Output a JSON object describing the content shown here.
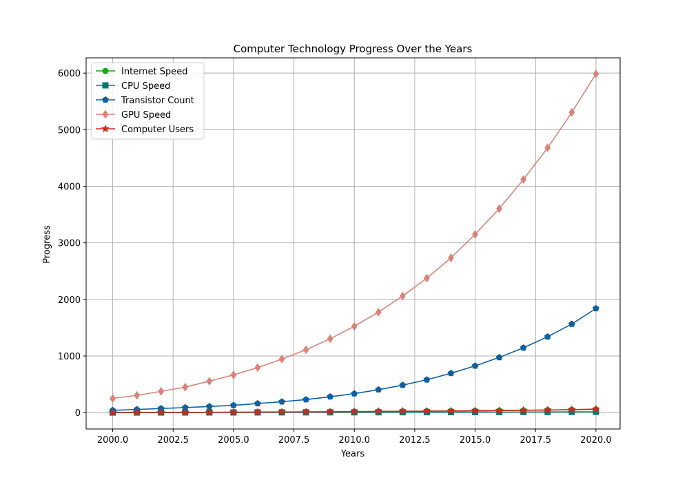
{
  "chart_data": {
    "type": "line",
    "title": "Computer Technology Progress Over the Years",
    "xlabel": "Years",
    "ylabel": "Progress",
    "xlim": [
      1998.9,
      2021.0
    ],
    "ylim": [
      -290,
      6270
    ],
    "x_ticks": [
      2000,
      2002.5,
      2005,
      2007.5,
      2010,
      2012.5,
      2015,
      2017.5,
      2020
    ],
    "x_tick_labels": [
      "2000.0",
      "2002.5",
      "2005.0",
      "2007.5",
      "2010.0",
      "2012.5",
      "2015.0",
      "2017.5",
      "2020.0"
    ],
    "y_ticks": [
      0,
      1000,
      2000,
      3000,
      4000,
      5000,
      6000
    ],
    "y_tick_labels": [
      "0",
      "1000",
      "2000",
      "3000",
      "4000",
      "5000",
      "6000"
    ],
    "grid": true,
    "legend_position": "top-left",
    "x": [
      2000,
      2001,
      2002,
      2003,
      2004,
      2005,
      2006,
      2007,
      2008,
      2009,
      2010,
      2011,
      2012,
      2013,
      2014,
      2015,
      2016,
      2017,
      2018,
      2019,
      2020
    ],
    "series": [
      {
        "name": "Internet Speed",
        "color": "#1aa51a",
        "marker": "circle",
        "values": [
          1,
          2,
          3,
          4,
          5,
          7,
          8,
          10,
          12,
          14,
          17,
          19,
          22,
          25,
          28,
          32,
          36,
          40,
          45,
          50,
          56
        ]
      },
      {
        "name": "CPU Speed",
        "color": "#007a6e",
        "marker": "square",
        "values": [
          1,
          1.2,
          1.5,
          1.8,
          2.1,
          2.5,
          2.9,
          3.3,
          3.8,
          4.3,
          4.8,
          5.4,
          6,
          6.6,
          7.3,
          8,
          8.8,
          9.6,
          10.5,
          11.5,
          12.5
        ]
      },
      {
        "name": "Transistor Count",
        "color": "#1060a0",
        "marker": "pentagon",
        "values": [
          40,
          55,
          72,
          88,
          108,
          128,
          160,
          192,
          230,
          280,
          335,
          405,
          485,
          580,
          695,
          825,
          975,
          1145,
          1340,
          1565,
          1840
        ]
      },
      {
        "name": "GPU Speed",
        "color": "#d9847a",
        "marker": "diamond",
        "values": [
          250,
          305,
          375,
          450,
          555,
          665,
          795,
          945,
          1110,
          1305,
          1525,
          1775,
          2060,
          2375,
          2735,
          3150,
          3605,
          4120,
          4680,
          5305,
          5985
        ]
      },
      {
        "name": "Computer Users",
        "color": "#cc2a1e",
        "marker": "star",
        "values": [
          1,
          2,
          3,
          4,
          5,
          6,
          8,
          10,
          12,
          14,
          16,
          19,
          22,
          25,
          28,
          32,
          36,
          41,
          46,
          52,
          62
        ]
      }
    ]
  }
}
